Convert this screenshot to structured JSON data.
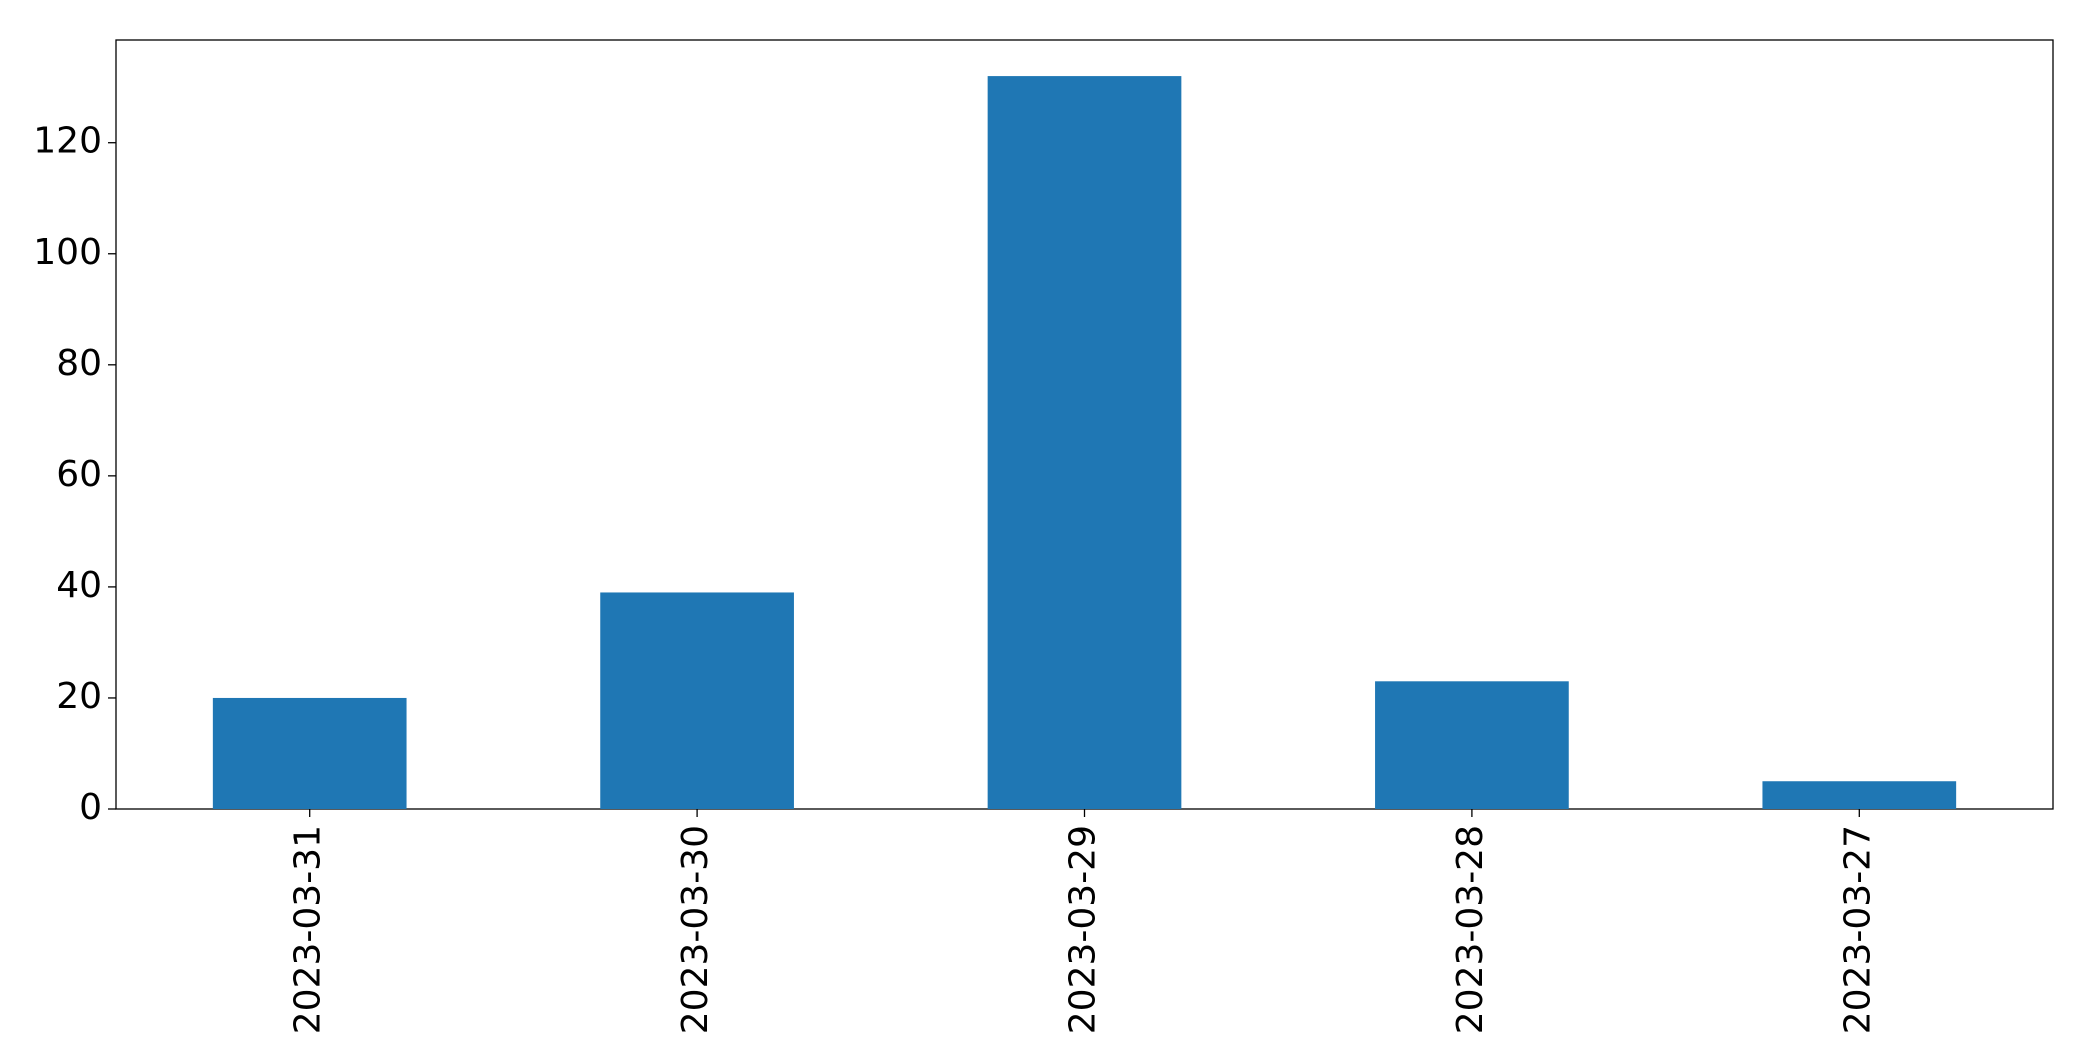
{
  "chart_data": {
    "type": "bar",
    "categories": [
      "2023-03-31",
      "2023-03-30",
      "2023-03-29",
      "2023-03-28",
      "2023-03-27"
    ],
    "values": [
      20,
      39,
      132,
      23,
      5
    ],
    "color": "#1f77b4",
    "ylim": [
      0,
      138.5
    ],
    "yticks": [
      0,
      20,
      40,
      60,
      80,
      100,
      120
    ],
    "grid": false
  }
}
